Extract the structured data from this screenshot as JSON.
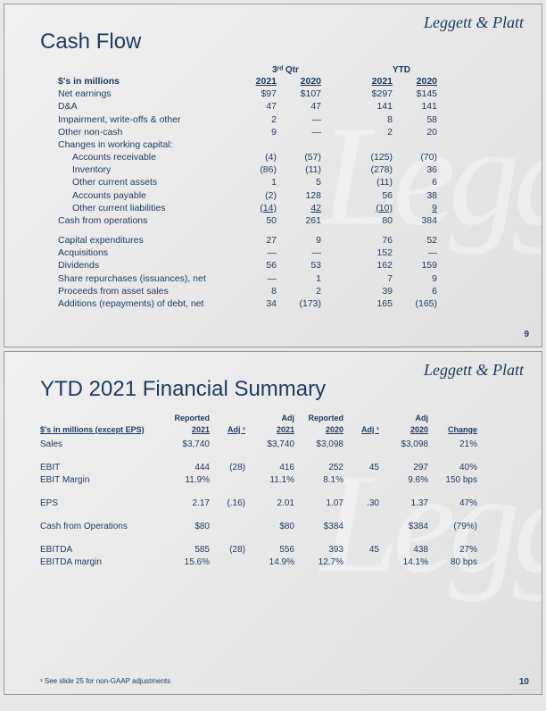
{
  "brand": "Leggett & Platt",
  "slide1": {
    "title": "Cash Flow",
    "pagenum": "9",
    "group_headers": {
      "q3": "3ʳᵈ Qtr",
      "ytd": "YTD"
    },
    "col_headers": {
      "label": "$'s in millions",
      "y2021": "2021",
      "y2020": "2020"
    },
    "rows": [
      {
        "label": "Net earnings",
        "q21": "$97",
        "q20": "$107",
        "y21": "$297",
        "y20": "$145"
      },
      {
        "label": "D&A",
        "q21": "47",
        "q20": "47",
        "y21": "141",
        "y20": "141"
      },
      {
        "label": "Impairment, write-offs & other",
        "q21": "2",
        "q20": "—",
        "y21": "8",
        "y20": "58"
      },
      {
        "label": "Other non-cash",
        "q21": "9",
        "q20": "—",
        "y21": "2",
        "y20": "20"
      },
      {
        "label": "Changes in working capital:",
        "q21": "",
        "q20": "",
        "y21": "",
        "y20": ""
      },
      {
        "label": "Accounts receivable",
        "q21": "(4)",
        "q20": "(57)",
        "y21": "(125)",
        "y20": "(70)",
        "indent": true
      },
      {
        "label": "Inventory",
        "q21": "(86)",
        "q20": "(11)",
        "y21": "(278)",
        "y20": "36",
        "indent": true
      },
      {
        "label": "Other current assets",
        "q21": "1",
        "q20": "5",
        "y21": "(11)",
        "y20": "6",
        "indent": true
      },
      {
        "label": "Accounts payable",
        "q21": "(2)",
        "q20": "128",
        "y21": "56",
        "y20": "38",
        "indent": true
      },
      {
        "label": "Other current liabilities",
        "q21": "(14)",
        "q20": "42",
        "y21": "(10)",
        "y20": "9",
        "indent": true,
        "uline": true
      },
      {
        "label": "Cash from operations",
        "q21": "50",
        "q20": "261",
        "y21": "80",
        "y20": "384"
      }
    ],
    "rows2": [
      {
        "label": "Capital expenditures",
        "q21": "27",
        "q20": "9",
        "y21": "76",
        "y20": "52"
      },
      {
        "label": "Acquisitions",
        "q21": "—",
        "q20": "—",
        "y21": "152",
        "y20": "—"
      },
      {
        "label": "Dividends",
        "q21": "56",
        "q20": "53",
        "y21": "162",
        "y20": "159"
      },
      {
        "label": "Share repurchases (issuances), net",
        "q21": "—",
        "q20": "1",
        "y21": "7",
        "y20": "9"
      },
      {
        "label": "Proceeds from asset sales",
        "q21": "8",
        "q20": "2",
        "y21": "39",
        "y20": "6"
      },
      {
        "label": "Additions (repayments) of debt, net",
        "q21": "34",
        "q20": "(173)",
        "y21": "165",
        "y20": "(165)"
      }
    ]
  },
  "slide2": {
    "title": "YTD 2021 Financial Summary",
    "pagenum": "10",
    "footnote": "¹ See slide 25 for non-GAAP adjustments",
    "headers2": {
      "rep": "Reported",
      "adj": "Adj"
    },
    "headers": {
      "label": "$'s in millions (except EPS)",
      "r21": "2021",
      "a1": "Adj ¹",
      "adj21": "2021",
      "r20": "2020",
      "a2": "Adj ¹",
      "adj20": "2020",
      "chg": "Change"
    },
    "rows": [
      {
        "label": "Sales",
        "r21": "$3,740",
        "a1": "",
        "adj21": "$3,740",
        "r20": "$3,098",
        "a2": "",
        "adj20": "$3,098",
        "chg": "21%",
        "spacer": true
      },
      {
        "label": "EBIT",
        "r21": "444",
        "a1": "(28)",
        "adj21": "416",
        "r20": "252",
        "a2": "45",
        "adj20": "297",
        "chg": "40%"
      },
      {
        "label": "EBIT Margin",
        "r21": "11.9%",
        "a1": "",
        "adj21": "11.1%",
        "r20": "8.1%",
        "a2": "",
        "adj20": "9.6%",
        "chg": "150 bps",
        "spacer": true
      },
      {
        "label": "EPS",
        "r21": "2.17",
        "a1": "(.16)",
        "adj21": "2.01",
        "r20": "1.07",
        "a2": ".30",
        "adj20": "1.37",
        "chg": "47%",
        "spacer": true
      },
      {
        "label": "Cash from Operations",
        "r21": "$80",
        "a1": "",
        "adj21": "$80",
        "r20": "$384",
        "a2": "",
        "adj20": "$384",
        "chg": "(79%)",
        "spacer": true
      },
      {
        "label": "EBITDA",
        "r21": "585",
        "a1": "(28)",
        "adj21": "556",
        "r20": "393",
        "a2": "45",
        "adj20": "438",
        "chg": "27%"
      },
      {
        "label": "EBITDA margin",
        "r21": "15.6%",
        "a1": "",
        "adj21": "14.9%",
        "r20": "12.7%",
        "a2": "",
        "adj20": "14.1%",
        "chg": "80 bps"
      }
    ]
  }
}
